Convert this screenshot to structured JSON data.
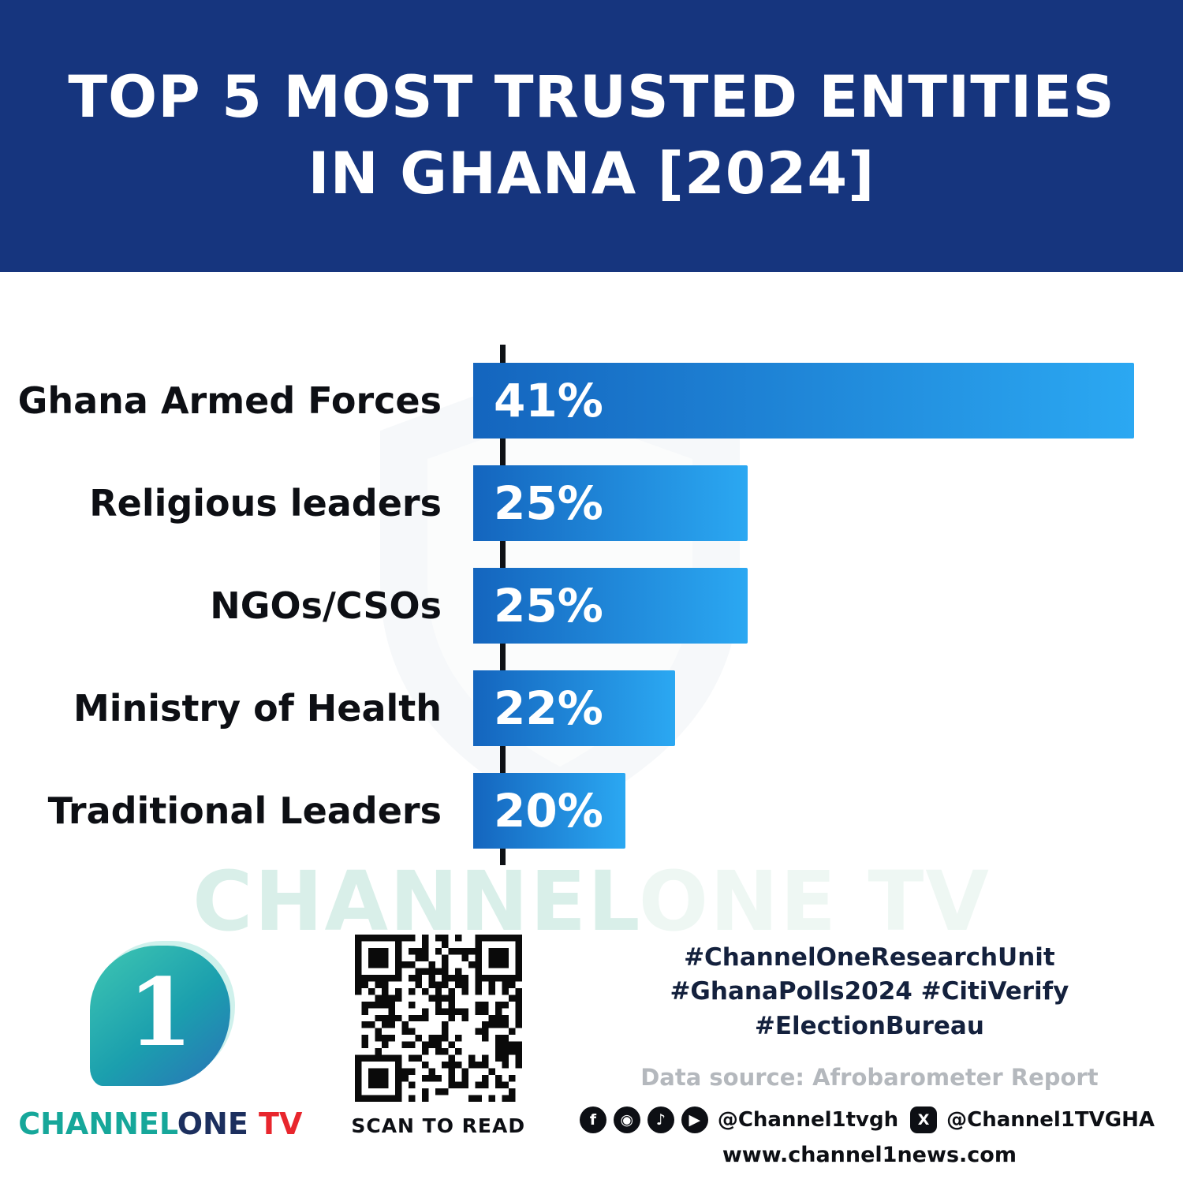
{
  "header": {
    "title_line1": "TOP 5 MOST TRUSTED ENTITIES",
    "title_line2": "IN GHANA [2024]"
  },
  "chart_data": {
    "type": "bar",
    "orientation": "horizontal",
    "title": "Top 5 Most Trusted Entities in Ghana [2024]",
    "categories": [
      "Ghana Armed Forces",
      "Religious leaders",
      "NGOs/CSOs",
      "Ministry of Health",
      "Traditional Leaders"
    ],
    "values": [
      41,
      25,
      25,
      22,
      20
    ],
    "value_labels": [
      "41%",
      "25%",
      "25%",
      "22%",
      "20%"
    ],
    "display_width_pct": [
      100,
      41.5,
      41.5,
      30.5,
      23
    ],
    "xlabel": "",
    "ylabel": "",
    "xlim": [
      0,
      41
    ],
    "grid": false,
    "legend": false,
    "bar_gradient": [
      "#1465BE",
      "#2BA8F2"
    ]
  },
  "watermark": {
    "part1": "CHANNEL",
    "part2": "ONE TV"
  },
  "footer": {
    "logo": {
      "numeral": "1",
      "brand_channel": "CHANNEL",
      "brand_one": "ONE",
      "brand_tv": " TV"
    },
    "qr_caption": "SCAN TO READ",
    "hashtags_line1": "#ChannelOneResearchUnit",
    "hashtags_line2": "#GhanaPolls2024 #CitiVerify",
    "hashtags_line3": "#ElectionBureau",
    "source": "Data source: Afrobarometer Report",
    "social": {
      "handle1": "@Channel1tvgh",
      "handle2": "@Channel1TVGHA",
      "icons": [
        "facebook-icon",
        "instagram-icon",
        "tiktok-icon",
        "youtube-icon",
        "x-icon"
      ]
    },
    "website": "www.channel1news.com"
  },
  "colors": {
    "header_bg": "#16357E",
    "bar_start": "#1465BE",
    "bar_end": "#2BA8F2",
    "axis": "#0e1116",
    "label_text": "#0d0f14",
    "brand_teal": "#16a79a",
    "brand_navy": "#1c2f5e",
    "brand_red": "#e8262d"
  }
}
